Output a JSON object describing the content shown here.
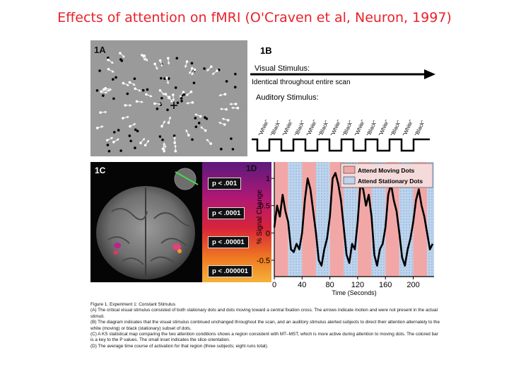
{
  "slide": {
    "title": "Effects of attention on fMRI (O'Craven et al, Neuron, 1997)"
  },
  "panel_a": {
    "label": "1A"
  },
  "panel_b": {
    "label": "1B",
    "visual_title": "Visual Stimulus:",
    "visual_sub": "Identical throughout entire scan",
    "auditory_title": "Auditory Stimulus:",
    "cues": [
      "\"White\"",
      "\"Black\"",
      "\"White\"",
      "\"Black\"",
      "\"White\"",
      "\"Black\"",
      "\"White\"",
      "\"Black\"",
      "\"White\"",
      "\"Black\"",
      "\"White\"",
      "\"Black\"",
      "\"White\"",
      "\"Black\""
    ]
  },
  "panel_c": {
    "label": "1C",
    "pvalues": [
      "p < .001",
      "p < .0001",
      "p < .00001",
      "p < .000001"
    ]
  },
  "panel_d": {
    "label": "1D"
  },
  "chart_data": {
    "type": "line",
    "xlabel": "Time (Seconds)",
    "ylabel": "% Signal Change",
    "xlim": [
      0,
      230
    ],
    "ylim": [
      -0.8,
      1.3
    ],
    "xticks": [
      0,
      40,
      80,
      120,
      160,
      200
    ],
    "yticks": [
      1,
      0.5,
      0,
      -0.5
    ],
    "ytick_labels": [
      "1",
      "0.5",
      "0",
      "-0.5"
    ],
    "legend": [
      {
        "name": "Attend Moving Dots",
        "color": "#f2a7a7"
      },
      {
        "name": "Attend Stationary Dots",
        "color": "#bcd4ee"
      }
    ],
    "legend_position": "top-right",
    "condition_blocks": [
      {
        "start": 0,
        "end": 20,
        "condition": "Attend Moving Dots"
      },
      {
        "start": 20,
        "end": 40,
        "condition": "Attend Stationary Dots"
      },
      {
        "start": 40,
        "end": 60,
        "condition": "Attend Moving Dots"
      },
      {
        "start": 60,
        "end": 80,
        "condition": "Attend Stationary Dots"
      },
      {
        "start": 80,
        "end": 100,
        "condition": "Attend Moving Dots"
      },
      {
        "start": 100,
        "end": 120,
        "condition": "Attend Stationary Dots"
      },
      {
        "start": 120,
        "end": 140,
        "condition": "Attend Moving Dots"
      },
      {
        "start": 140,
        "end": 160,
        "condition": "Attend Stationary Dots"
      },
      {
        "start": 160,
        "end": 180,
        "condition": "Attend Moving Dots"
      },
      {
        "start": 180,
        "end": 200,
        "condition": "Attend Stationary Dots"
      },
      {
        "start": 200,
        "end": 220,
        "condition": "Attend Moving Dots"
      },
      {
        "start": 220,
        "end": 230,
        "condition": "Attend Stationary Dots"
      }
    ],
    "series": [
      {
        "x": [
          0,
          4,
          8,
          12,
          16,
          20,
          24,
          28,
          32,
          36,
          40,
          44,
          48,
          52,
          56,
          60,
          64,
          68,
          72,
          76,
          80,
          84,
          88,
          92,
          96,
          100,
          104,
          108,
          112,
          116,
          120,
          124,
          128,
          132,
          136,
          140,
          144,
          148,
          152,
          156,
          160,
          164,
          168,
          172,
          176,
          180,
          184,
          188,
          192,
          196,
          200,
          204,
          208,
          212,
          216,
          220,
          224,
          228
        ],
        "values": [
          0.1,
          0.5,
          0.3,
          0.7,
          0.4,
          0.2,
          -0.3,
          -0.35,
          -0.2,
          -0.3,
          0.0,
          0.6,
          1.0,
          0.8,
          0.4,
          0.0,
          -0.5,
          -0.6,
          -0.3,
          -0.1,
          0.3,
          1.0,
          1.1,
          0.9,
          0.6,
          0.1,
          -0.4,
          -0.55,
          -0.2,
          -0.3,
          0.2,
          0.9,
          0.8,
          0.5,
          0.7,
          0.3,
          -0.4,
          -0.6,
          -0.3,
          -0.2,
          0.1,
          0.7,
          0.9,
          0.6,
          0.4,
          0.0,
          -0.45,
          -0.6,
          -0.3,
          -0.1,
          0.2,
          0.6,
          0.8,
          0.5,
          0.3,
          0.0,
          -0.3,
          -0.2
        ]
      }
    ]
  },
  "caption": {
    "heading": "Figure 1.  Experiment 1: Constant Stimulus",
    "a": "(A) The critical visual stimulus consisted of both stationary dots and dots moving toward a central fixation cross. The arrows indicate motion and were not present in the actual stimuli.",
    "b": "(B) The diagram indicates that the visual stimulus continued unchanged throughout the scan, and an auditory stimulus alerted subjects to direct their attention alternately to the white (moving) or black (stationary) subset of dots.",
    "c": "(C) A KS statistical map comparing the two attention conditions shows a region consistent with MT–MST, which is more active during attention to moving dots. The colored bar is a key to the P values. The small inset indicates the slice orientation.",
    "d": "(D) The average time course of activation for that region (three subjects; eight runs total)."
  }
}
